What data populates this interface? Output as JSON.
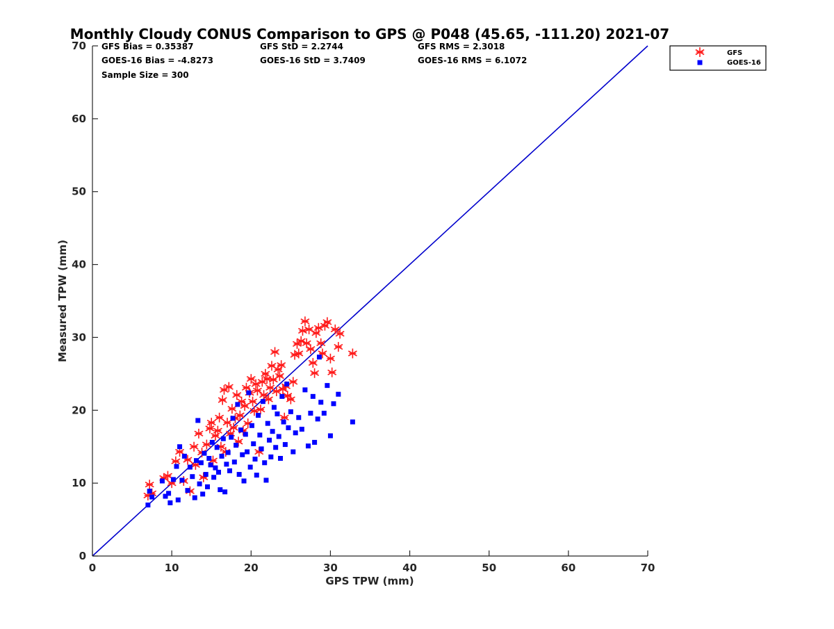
{
  "chart_data": {
    "type": "scatter",
    "title": "Monthly Cloudy CONUS Comparison to GPS @ P048 (45.65, -111.20) 2021-07",
    "xlabel": "GPS TPW (mm)",
    "ylabel": "Measured TPW (mm)",
    "xlim": [
      0,
      70
    ],
    "ylim": [
      0,
      70
    ],
    "xticks": [
      "0",
      "10",
      "20",
      "30",
      "40",
      "50",
      "60",
      "70"
    ],
    "yticks": [
      "0",
      "10",
      "20",
      "30",
      "40",
      "50",
      "60",
      "70"
    ],
    "grid": false,
    "legend_position": "top-right",
    "reference_line": {
      "x": [
        0,
        70
      ],
      "y": [
        0,
        70
      ],
      "color": "#0000cc"
    },
    "stats": {
      "gfs_bias": "GFS Bias = 0.35387",
      "gfs_std": "GFS StD = 2.2744",
      "gfs_rms": "GFS RMS = 2.3018",
      "goes_bias": "GOES-16 Bias = -4.8273",
      "goes_std": "GOES-16 StD = 3.7409",
      "goes_rms": "GOES-16 RMS = 6.1072",
      "sample_size": "Sample Size = 300"
    },
    "series": [
      {
        "name": "GFS",
        "marker": "asterisk",
        "color": "#ff1a1a",
        "points": [
          [
            7,
            8.3
          ],
          [
            7.2,
            9.8
          ],
          [
            7.5,
            8.6
          ],
          [
            9,
            10.7
          ],
          [
            9.5,
            11
          ],
          [
            10,
            10
          ],
          [
            10.5,
            13
          ],
          [
            11,
            14.3
          ],
          [
            11.5,
            10.3
          ],
          [
            12,
            13.2
          ],
          [
            12.3,
            8.9
          ],
          [
            12.8,
            15
          ],
          [
            13,
            12.5
          ],
          [
            13.4,
            16.8
          ],
          [
            13.8,
            14.2
          ],
          [
            14,
            10.8
          ],
          [
            14.4,
            15.3
          ],
          [
            14.8,
            17.5
          ],
          [
            15,
            18.3
          ],
          [
            15.2,
            13.1
          ],
          [
            15.5,
            16.5
          ],
          [
            15.8,
            17.2
          ],
          [
            16,
            19
          ],
          [
            16.2,
            15
          ],
          [
            16.4,
            21.4
          ],
          [
            16.6,
            22.8
          ],
          [
            16.8,
            14.3
          ],
          [
            17,
            18.3
          ],
          [
            17.2,
            23.2
          ],
          [
            17.4,
            16.8
          ],
          [
            17.6,
            20.2
          ],
          [
            17.8,
            17.6
          ],
          [
            18,
            18.9
          ],
          [
            18.2,
            22.1
          ],
          [
            18.4,
            15.7
          ],
          [
            18.6,
            19.3
          ],
          [
            18.8,
            21.2
          ],
          [
            19,
            17.2
          ],
          [
            19.2,
            20.6
          ],
          [
            19.4,
            23.1
          ],
          [
            19.6,
            18.2
          ],
          [
            19.8,
            22.4
          ],
          [
            20,
            24.3
          ],
          [
            20.2,
            21.2
          ],
          [
            20.4,
            19.9
          ],
          [
            20.6,
            23.6
          ],
          [
            20.8,
            22.7
          ],
          [
            21,
            14.3
          ],
          [
            21.2,
            20.1
          ],
          [
            21.4,
            23.9
          ],
          [
            21.6,
            22.1
          ],
          [
            21.8,
            25
          ],
          [
            22,
            24.3
          ],
          [
            22.2,
            21.5
          ],
          [
            22.4,
            23.1
          ],
          [
            22.6,
            26.1
          ],
          [
            22.8,
            24.2
          ],
          [
            23,
            28
          ],
          [
            23.2,
            22.6
          ],
          [
            23.4,
            25.6
          ],
          [
            23.6,
            24.7
          ],
          [
            23.8,
            26.2
          ],
          [
            24,
            22.9
          ],
          [
            24.2,
            19
          ],
          [
            24.4,
            23.3
          ],
          [
            24.6,
            22
          ],
          [
            25,
            21.5
          ],
          [
            25.3,
            23.9
          ],
          [
            25.5,
            27.6
          ],
          [
            25.8,
            29.1
          ],
          [
            26,
            27.8
          ],
          [
            26.3,
            29.5
          ],
          [
            26.5,
            30.9
          ],
          [
            26.8,
            32.2
          ],
          [
            27,
            29.2
          ],
          [
            27.3,
            31.1
          ],
          [
            27.5,
            28.4
          ],
          [
            27.8,
            26.5
          ],
          [
            28,
            25.1
          ],
          [
            28.2,
            30.6
          ],
          [
            28.5,
            31.3
          ],
          [
            28.8,
            29.2
          ],
          [
            29,
            27.8
          ],
          [
            29.3,
            31.6
          ],
          [
            29.6,
            32.1
          ],
          [
            30,
            27.1
          ],
          [
            30.2,
            25.2
          ],
          [
            30.6,
            31.1
          ],
          [
            31,
            28.7
          ],
          [
            31.2,
            30.5
          ],
          [
            32.8,
            27.8
          ]
        ]
      },
      {
        "name": "GOES-16",
        "marker": "square",
        "color": "#0000ff",
        "points": [
          [
            7,
            7
          ],
          [
            7.2,
            8.9
          ],
          [
            7.5,
            8.1
          ],
          [
            8.8,
            10.3
          ],
          [
            9.2,
            8.2
          ],
          [
            9.6,
            8.6
          ],
          [
            9.8,
            7.3
          ],
          [
            10.2,
            10.5
          ],
          [
            10.6,
            12.3
          ],
          [
            10.8,
            7.7
          ],
          [
            11,
            15
          ],
          [
            11.3,
            10.4
          ],
          [
            11.6,
            13.7
          ],
          [
            12,
            9
          ],
          [
            12.3,
            12.2
          ],
          [
            12.6,
            10.9
          ],
          [
            12.9,
            8
          ],
          [
            13.1,
            13.1
          ],
          [
            13.3,
            18.6
          ],
          [
            13.5,
            9.9
          ],
          [
            13.7,
            12.8
          ],
          [
            13.9,
            8.5
          ],
          [
            14.1,
            14.1
          ],
          [
            14.3,
            11.2
          ],
          [
            14.5,
            9.5
          ],
          [
            14.7,
            13.4
          ],
          [
            14.9,
            12.5
          ],
          [
            15.1,
            15.6
          ],
          [
            15.3,
            10.8
          ],
          [
            15.5,
            12.1
          ],
          [
            15.7,
            14.9
          ],
          [
            15.9,
            11.5
          ],
          [
            16.1,
            9.1
          ],
          [
            16.3,
            13.7
          ],
          [
            16.5,
            16.1
          ],
          [
            16.7,
            8.8
          ],
          [
            16.9,
            12.6
          ],
          [
            17.1,
            14.2
          ],
          [
            17.3,
            11.7
          ],
          [
            17.5,
            16.3
          ],
          [
            17.7,
            18.9
          ],
          [
            17.9,
            12.9
          ],
          [
            18.1,
            15.2
          ],
          [
            18.3,
            20.8
          ],
          [
            18.5,
            11.2
          ],
          [
            18.7,
            17.3
          ],
          [
            18.9,
            13.9
          ],
          [
            19.1,
            10.3
          ],
          [
            19.3,
            16.7
          ],
          [
            19.5,
            14.3
          ],
          [
            19.7,
            22.4
          ],
          [
            19.9,
            12.2
          ],
          [
            20.1,
            17.9
          ],
          [
            20.3,
            15.4
          ],
          [
            20.5,
            13.3
          ],
          [
            20.7,
            11.1
          ],
          [
            20.9,
            19.3
          ],
          [
            21.1,
            16.6
          ],
          [
            21.3,
            14.7
          ],
          [
            21.5,
            21.2
          ],
          [
            21.7,
            12.8
          ],
          [
            21.9,
            10.4
          ],
          [
            22.1,
            18.2
          ],
          [
            22.3,
            15.9
          ],
          [
            22.5,
            13.6
          ],
          [
            22.7,
            17.1
          ],
          [
            22.9,
            20.4
          ],
          [
            23.1,
            14.9
          ],
          [
            23.3,
            19.5
          ],
          [
            23.5,
            16.4
          ],
          [
            23.7,
            13.4
          ],
          [
            23.9,
            21.9
          ],
          [
            24.1,
            18.4
          ],
          [
            24.3,
            15.3
          ],
          [
            24.5,
            23.6
          ],
          [
            24.7,
            17.6
          ],
          [
            25,
            19.8
          ],
          [
            25.3,
            14.3
          ],
          [
            25.6,
            16.9
          ],
          [
            26,
            19
          ],
          [
            26.4,
            17.4
          ],
          [
            26.8,
            22.8
          ],
          [
            27.2,
            15.1
          ],
          [
            27.5,
            19.6
          ],
          [
            27.8,
            21.9
          ],
          [
            28,
            15.6
          ],
          [
            28.4,
            18.8
          ],
          [
            28.8,
            21.1
          ],
          [
            29.2,
            19.6
          ],
          [
            29.6,
            23.4
          ],
          [
            30,
            16.5
          ],
          [
            30.4,
            20.9
          ],
          [
            31,
            22.2
          ],
          [
            32.8,
            18.4
          ],
          [
            28.6,
            27.3
          ]
        ]
      }
    ]
  }
}
